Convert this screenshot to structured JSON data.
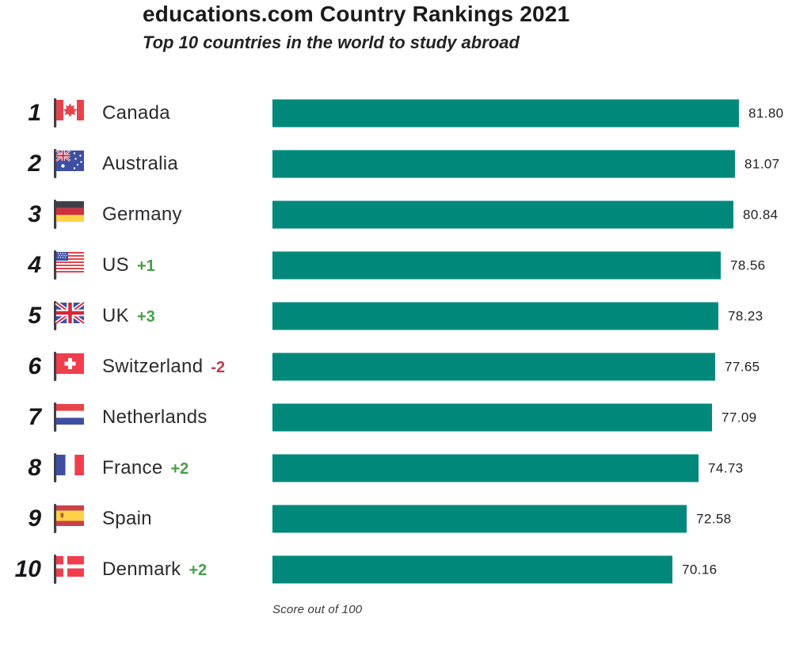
{
  "chart_data": {
    "type": "bar",
    "orientation": "horizontal",
    "title": "educations.com Country Rankings 2021",
    "subtitle": "Top 10 countries in the world to study abroad",
    "footnote": "Score out of 100",
    "scale": {
      "min": 0,
      "max": 100
    },
    "bar_color": "#00897B",
    "positive_change_color": "#43a047",
    "negative_change_color": "#c0394b",
    "categories": [
      "Canada",
      "Australia",
      "Germany",
      "US",
      "UK",
      "Switzerland",
      "Netherlands",
      "France",
      "Spain",
      "Denmark"
    ],
    "values": [
      81.8,
      81.07,
      80.84,
      78.56,
      78.23,
      77.65,
      77.09,
      74.73,
      72.58,
      70.16
    ],
    "rows": [
      {
        "rank": "1",
        "country": "Canada",
        "change": "",
        "score": 81.8,
        "score_label": "81.80",
        "flag": "canada-flag-icon"
      },
      {
        "rank": "2",
        "country": "Australia",
        "change": "",
        "score": 81.07,
        "score_label": "81.07",
        "flag": "australia-flag-icon"
      },
      {
        "rank": "3",
        "country": "Germany",
        "change": "",
        "score": 80.84,
        "score_label": "80.84",
        "flag": "germany-flag-icon"
      },
      {
        "rank": "4",
        "country": "US",
        "change": "+1",
        "score": 78.56,
        "score_label": "78.56",
        "flag": "us-flag-icon"
      },
      {
        "rank": "5",
        "country": "UK",
        "change": "+3",
        "score": 78.23,
        "score_label": "78.23",
        "flag": "uk-flag-icon"
      },
      {
        "rank": "6",
        "country": "Switzerland",
        "change": "-2",
        "score": 77.65,
        "score_label": "77.65",
        "flag": "switzerland-flag-icon"
      },
      {
        "rank": "7",
        "country": "Netherlands",
        "change": "",
        "score": 77.09,
        "score_label": "77.09",
        "flag": "netherlands-flag-icon"
      },
      {
        "rank": "8",
        "country": "France",
        "change": "+2",
        "score": 74.73,
        "score_label": "74.73",
        "flag": "france-flag-icon"
      },
      {
        "rank": "9",
        "country": "Spain",
        "change": "",
        "score": 72.58,
        "score_label": "72.58",
        "flag": "spain-flag-icon"
      },
      {
        "rank": "10",
        "country": "Denmark",
        "change": "+2",
        "score": 70.16,
        "score_label": "70.16",
        "flag": "denmark-flag-icon"
      }
    ]
  }
}
